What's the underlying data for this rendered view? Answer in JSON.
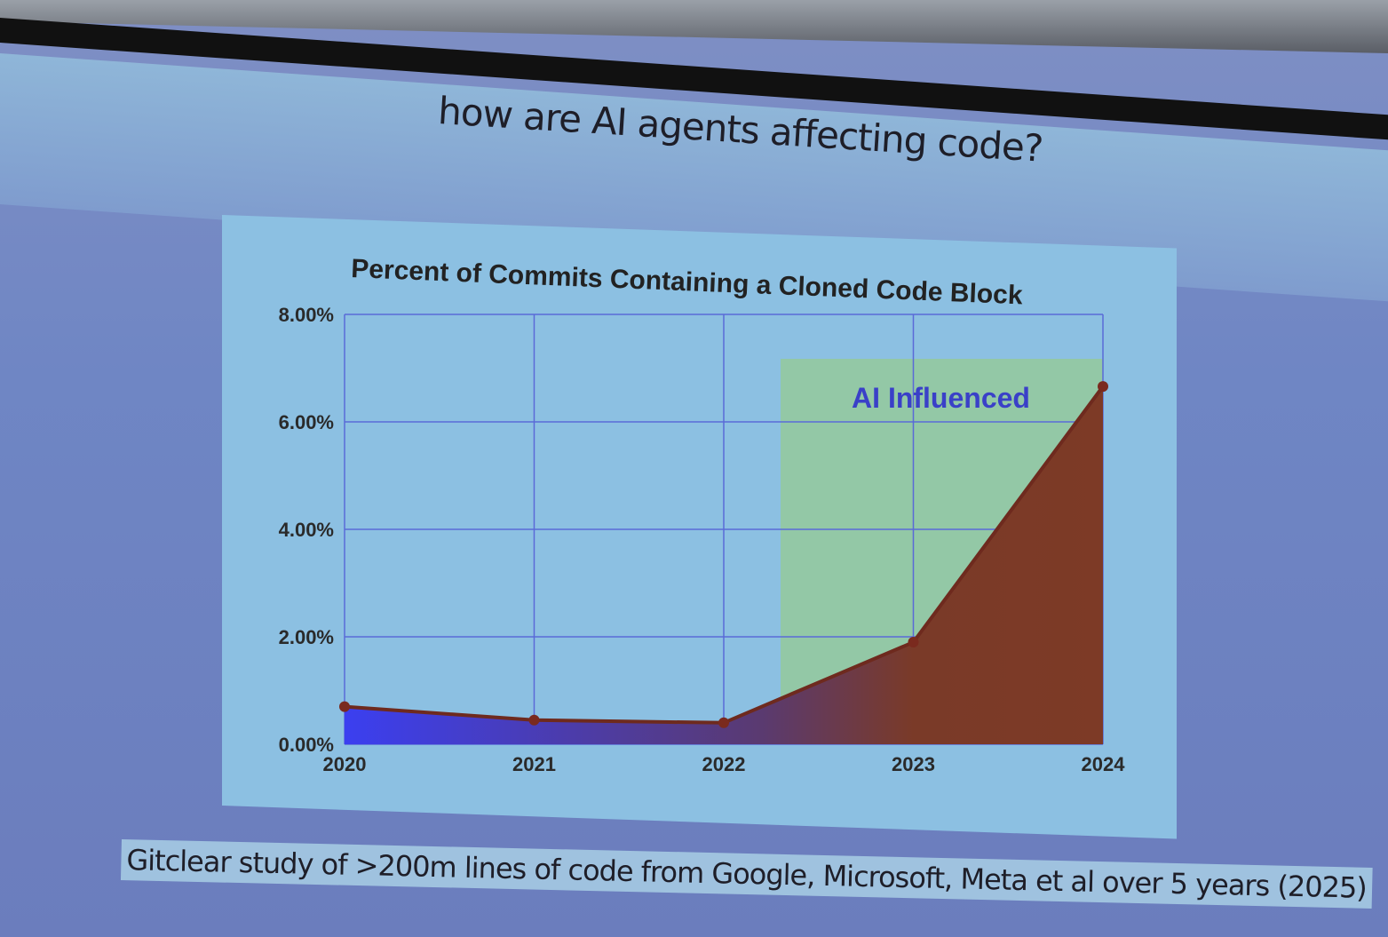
{
  "slide": {
    "title": "how are AI agents affecting code?",
    "caption": "Gitclear study of >200m lines of code from Google, Microsoft, Meta et al over 5 years (2025)"
  },
  "chart_data": {
    "type": "area",
    "title": "Percent of Commits Containing a Cloned Code Block",
    "categories": [
      "2020",
      "2021",
      "2022",
      "2023",
      "2024"
    ],
    "values": [
      0.7,
      0.45,
      0.4,
      1.9,
      6.66
    ],
    "unit": "%",
    "ylim": [
      0,
      8
    ],
    "yticks": [
      "0.00%",
      "2.00%",
      "4.00%",
      "6.00%",
      "8.00%"
    ],
    "xlabel": "",
    "ylabel": "",
    "grid": true,
    "annotation": {
      "label": "AI Influenced",
      "x_start": 2022.3,
      "x_end": 2024,
      "shade_color": "#93c8a6",
      "text_color": "#3a40c8"
    },
    "colors": {
      "start": "#3b3ff0",
      "end": "#7a3a28",
      "line": "#6e2a1e",
      "background": "#8cc0e2"
    }
  }
}
